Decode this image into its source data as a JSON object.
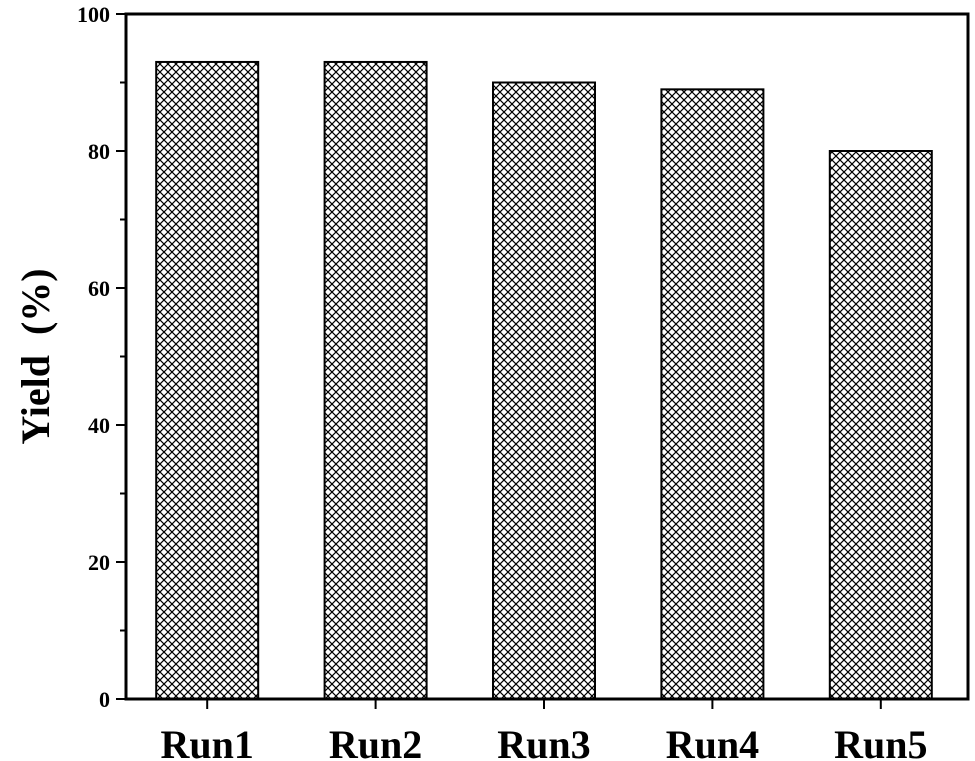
{
  "chart_data": {
    "type": "bar",
    "categories": [
      "Run1",
      "Run2",
      "Run3",
      "Run4",
      "Run5"
    ],
    "values": [
      93,
      93,
      90,
      89,
      80
    ],
    "title": "",
    "xlabel": "",
    "ylabel": "Yield  (%)",
    "ylim": [
      0,
      100
    ],
    "yticks": [
      0,
      20,
      40,
      60,
      80,
      100
    ],
    "grid": false,
    "legend": "none",
    "bar_fill": "crosshatch",
    "colors": {
      "bar_edge": "#000000",
      "hatch": "#000000",
      "background": "#ffffff"
    }
  }
}
